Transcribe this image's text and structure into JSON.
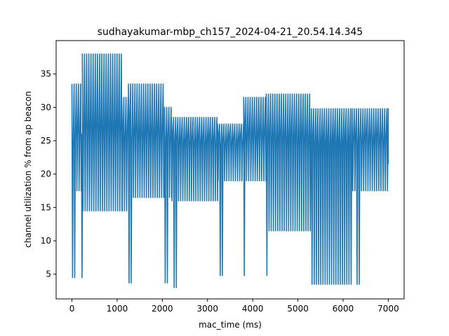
{
  "chart_data": {
    "type": "line",
    "title": "sudhayakumar-mbp_ch157_2024-04-21_20.54.14.345",
    "xlabel": "mac_time (ms)",
    "ylabel": "channel utilization % from ap beacon",
    "xlim": [
      -350,
      7350
    ],
    "ylim": [
      1.3,
      40.0
    ],
    "xticks": [
      0,
      1000,
      2000,
      3000,
      4000,
      5000,
      6000,
      7000
    ],
    "yticks": [
      5,
      10,
      15,
      20,
      25,
      30,
      35
    ],
    "grid": false,
    "legend": "none",
    "colors": {
      "line": "#1f77b4"
    },
    "segments": [
      {
        "x0": 0,
        "x1": 210,
        "lo": 17.5,
        "hi": 33.5,
        "dip": 4.5,
        "dipx": 40
      },
      {
        "x0": 210,
        "x1": 230,
        "lo": 17.5,
        "hi": 26,
        "dip": 4.5,
        "dipx": 220
      },
      {
        "x0": 230,
        "x1": 1100,
        "lo": 14.5,
        "hi": 38.0,
        "dip": null
      },
      {
        "x0": 1100,
        "x1": 1250,
        "lo": 14.5,
        "hi": 31.5,
        "dip": null
      },
      {
        "x0": 1250,
        "x1": 2050,
        "lo": 16.5,
        "hi": 33.5,
        "dip": 3.7,
        "dipx": 1270
      },
      {
        "x0": 2050,
        "x1": 2200,
        "lo": 16.5,
        "hi": 30.0,
        "dip": 3.7,
        "dipx": 2080
      },
      {
        "x0": 2200,
        "x1": 3220,
        "lo": 16.0,
        "hi": 28.5,
        "dip": 3.0,
        "dipx": 2280
      },
      {
        "x0": 3220,
        "x1": 3800,
        "lo": 19.0,
        "hi": 27.5,
        "dip": 4.8,
        "dipx": 3270
      },
      {
        "x0": 3800,
        "x1": 4300,
        "lo": 19.0,
        "hi": 31.5,
        "dip": 4.8,
        "dipx": 3800
      },
      {
        "x0": 4300,
        "x1": 5300,
        "lo": 11.5,
        "hi": 32.0,
        "dip": 4.8,
        "dipx": 4300
      },
      {
        "x0": 5300,
        "x1": 6200,
        "lo": 3.5,
        "hi": 29.8,
        "dip": 3.5,
        "dipx": 5320
      },
      {
        "x0": 6200,
        "x1": 7000,
        "lo": 17.5,
        "hi": 29.8,
        "dip": 3.5,
        "dipx": 6300
      }
    ],
    "pulse_period_ms": 48
  }
}
